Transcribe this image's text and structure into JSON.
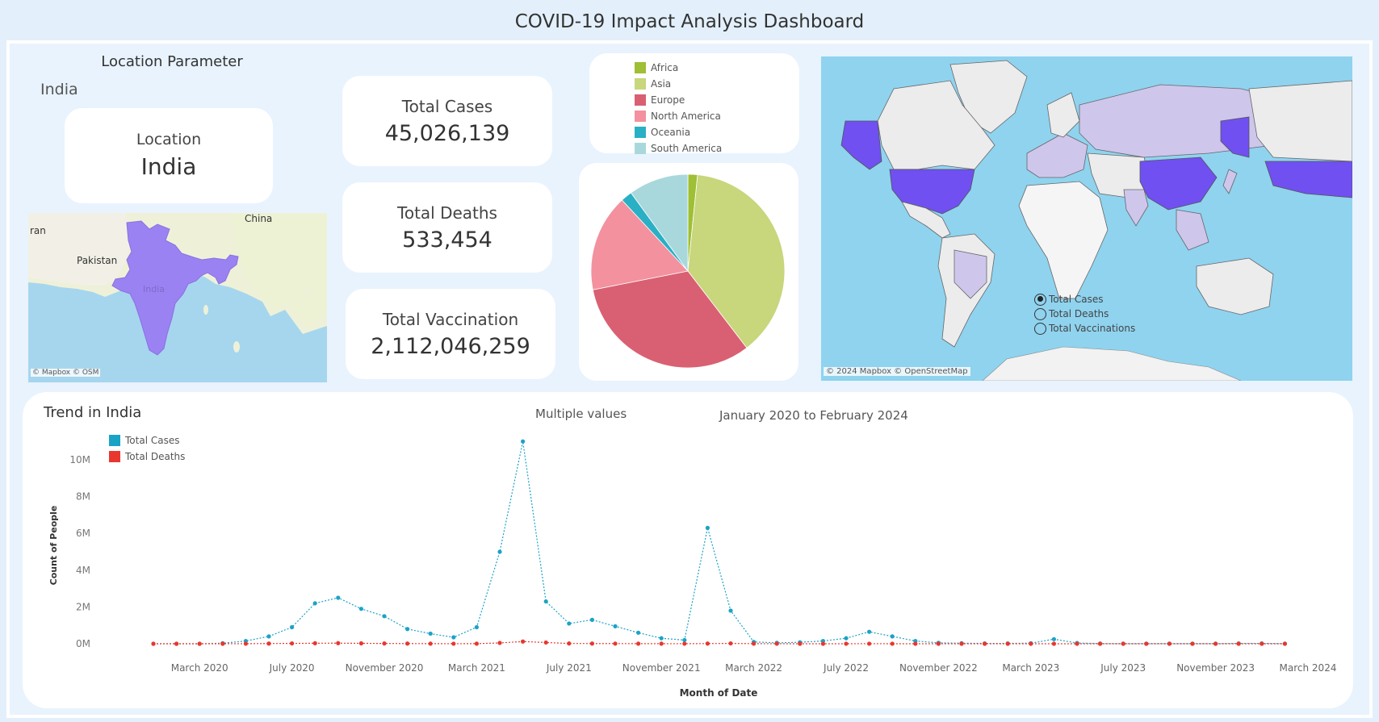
{
  "dashboard_title": "COVID-19 Impact Analysis Dashboard",
  "location_panel": {
    "heading": "Location Parameter",
    "selected_value": "India",
    "card_label": "Location",
    "card_value": "India",
    "map_labels": {
      "iran": "ran",
      "pakistan": "Pakistan",
      "china": "China",
      "india": "India"
    },
    "attribution": "© Mapbox © OSM"
  },
  "kpis": {
    "total_cases_label": "Total Cases",
    "total_cases_value": "45,026,139",
    "total_deaths_label": "Total Deaths",
    "total_deaths_value": "533,454",
    "total_vaccination_label": "Total Vaccination",
    "total_vaccination_value": "2,112,046,259"
  },
  "continent_legend": [
    {
      "name": "Africa",
      "color": "#9fbf34"
    },
    {
      "name": "Asia",
      "color": "#c8d67c"
    },
    {
      "name": "Europe",
      "color": "#d96072"
    },
    {
      "name": "North America",
      "color": "#f3919f"
    },
    {
      "name": "Oceania",
      "color": "#2ab0c4"
    },
    {
      "name": "South America",
      "color": "#a9d8dc"
    }
  ],
  "world_map": {
    "attribution": "© 2024 Mapbox © OpenStreetMap",
    "measure_options": [
      "Total Cases",
      "Total Deaths",
      "Total Vaccinations"
    ],
    "selected_measure": "Total Cases",
    "ocean_color": "#8fd3ef",
    "highlight_color": "#7050f0",
    "light_color": "#cfc6ec"
  },
  "trend": {
    "title": "Trend in India",
    "filter_label": "Multiple values",
    "date_range": "January 2020 to February 2024"
  },
  "chart_data": [
    {
      "type": "pie",
      "categories": [
        "Africa",
        "Asia",
        "Europe",
        "North America",
        "Oceania",
        "South America"
      ],
      "values": [
        1.6,
        38.0,
        32.3,
        16.2,
        1.9,
        10.0
      ],
      "colors": [
        "#9fbf34",
        "#c8d67c",
        "#d96072",
        "#f3919f",
        "#2ab0c4",
        "#a9d8dc"
      ]
    },
    {
      "type": "line",
      "title": "",
      "xlabel": "Month of Date",
      "ylabel": "Count of People",
      "ylim": [
        0,
        11000000
      ],
      "yticks": [
        0,
        2000000,
        4000000,
        6000000,
        8000000,
        10000000
      ],
      "ytick_labels": [
        "0M",
        "2M",
        "4M",
        "6M",
        "8M",
        "10M"
      ],
      "xtick_labels": [
        "March 2020",
        "July 2020",
        "November 2020",
        "March 2021",
        "July 2021",
        "November 2021",
        "March 2022",
        "July 2022",
        "November 2022",
        "March 2023",
        "July 2023",
        "November 2023",
        "March 2024"
      ],
      "xtick_months": [
        "2020-03",
        "2020-07",
        "2020-11",
        "2021-03",
        "2021-07",
        "2021-11",
        "2022-03",
        "2022-07",
        "2022-11",
        "2023-03",
        "2023-07",
        "2023-11",
        "2024-03"
      ],
      "x": [
        "2020-01",
        "2020-02",
        "2020-03",
        "2020-04",
        "2020-05",
        "2020-06",
        "2020-07",
        "2020-08",
        "2020-09",
        "2020-10",
        "2020-11",
        "2020-12",
        "2021-01",
        "2021-02",
        "2021-03",
        "2021-04",
        "2021-05",
        "2021-06",
        "2021-07",
        "2021-08",
        "2021-09",
        "2021-10",
        "2021-11",
        "2021-12",
        "2022-01",
        "2022-02",
        "2022-03",
        "2022-04",
        "2022-05",
        "2022-06",
        "2022-07",
        "2022-08",
        "2022-09",
        "2022-10",
        "2022-11",
        "2022-12",
        "2023-01",
        "2023-02",
        "2023-03",
        "2023-04",
        "2023-05",
        "2023-06",
        "2023-07",
        "2023-08",
        "2023-09",
        "2023-10",
        "2023-11",
        "2023-12",
        "2024-01",
        "2024-02"
      ],
      "series": [
        {
          "name": "Total Cases",
          "color": "#1ba3c6",
          "values": [
            0,
            0,
            0,
            30000,
            150000,
            400000,
            900000,
            2200000,
            2500000,
            1900000,
            1500000,
            800000,
            550000,
            350000,
            900000,
            5000000,
            11000000,
            2300000,
            1100000,
            1300000,
            950000,
            600000,
            300000,
            200000,
            6300000,
            1800000,
            100000,
            50000,
            80000,
            150000,
            300000,
            650000,
            400000,
            150000,
            50000,
            30000,
            20000,
            20000,
            30000,
            250000,
            40000,
            10000,
            5000,
            5000,
            5000,
            5000,
            5000,
            20000,
            20000,
            5000
          ]
        },
        {
          "name": "Total Deaths",
          "color": "#e8372f",
          "values": [
            0,
            0,
            0,
            1000,
            4000,
            12000,
            18000,
            28000,
            33000,
            23000,
            15000,
            11000,
            5000,
            3000,
            5000,
            45000,
            120000,
            68000,
            15000,
            12000,
            9000,
            6000,
            4000,
            3000,
            10000,
            20000,
            5000,
            2000,
            1000,
            1000,
            1500,
            2000,
            1500,
            500,
            300,
            200,
            100,
            100,
            200,
            1000,
            500,
            100,
            50,
            50,
            50,
            50,
            50,
            100,
            100,
            50
          ]
        }
      ]
    }
  ]
}
